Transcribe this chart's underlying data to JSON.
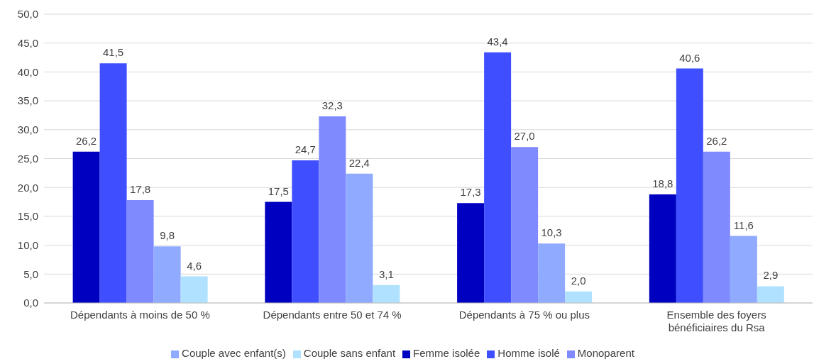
{
  "chart_data": {
    "type": "bar",
    "categories": [
      "Dépendants à moins de 50 %",
      "Dépendants entre 50 et 74 %",
      "Dépendants à 75 % ou plus",
      "Ensemble des foyers bénéficiaires du Rsa"
    ],
    "series": [
      {
        "name": "Femme isolée",
        "color": "#0000c0",
        "values": [
          26.2,
          17.5,
          17.3,
          18.8
        ],
        "value_labels": [
          "26,2",
          "17,5",
          "17,3",
          "18,8"
        ]
      },
      {
        "name": "Homme isolé",
        "color": "#3f4fff",
        "values": [
          41.5,
          24.7,
          43.4,
          40.6
        ],
        "value_labels": [
          "41,5",
          "24,7",
          "43,4",
          "40,6"
        ]
      },
      {
        "name": "Monoparent",
        "color": "#7f8aff",
        "values": [
          17.8,
          32.3,
          27.0,
          26.2
        ],
        "value_labels": [
          "17,8",
          "32,3",
          "27,0",
          "26,2"
        ]
      },
      {
        "name": "Couple avec enfant(s)",
        "color": "#8faaff",
        "values": [
          9.8,
          22.4,
          10.3,
          11.6
        ],
        "value_labels": [
          "9,8",
          "22,4",
          "10,3",
          "11,6"
        ]
      },
      {
        "name": "Couple sans enfant",
        "color": "#b0e2ff",
        "values": [
          4.6,
          3.1,
          2.0,
          2.9
        ],
        "value_labels": [
          "4,6",
          "3,1",
          "2,0",
          "2,9"
        ]
      }
    ],
    "ylim": [
      0,
      50
    ],
    "yticks": [
      {
        "value": 0,
        "label": "0,0"
      },
      {
        "value": 5,
        "label": "5,0"
      },
      {
        "value": 10,
        "label": "10,0"
      },
      {
        "value": 15,
        "label": "15,0"
      },
      {
        "value": 20,
        "label": "20,0"
      },
      {
        "value": 25,
        "label": "25,0"
      },
      {
        "value": 30,
        "label": "30,0"
      },
      {
        "value": 35,
        "label": "35,0"
      },
      {
        "value": 40,
        "label": "40,0"
      },
      {
        "value": 45,
        "label": "45,0"
      },
      {
        "value": 50,
        "label": "50,0"
      }
    ],
    "grid": "y",
    "legend": "bottom"
  }
}
